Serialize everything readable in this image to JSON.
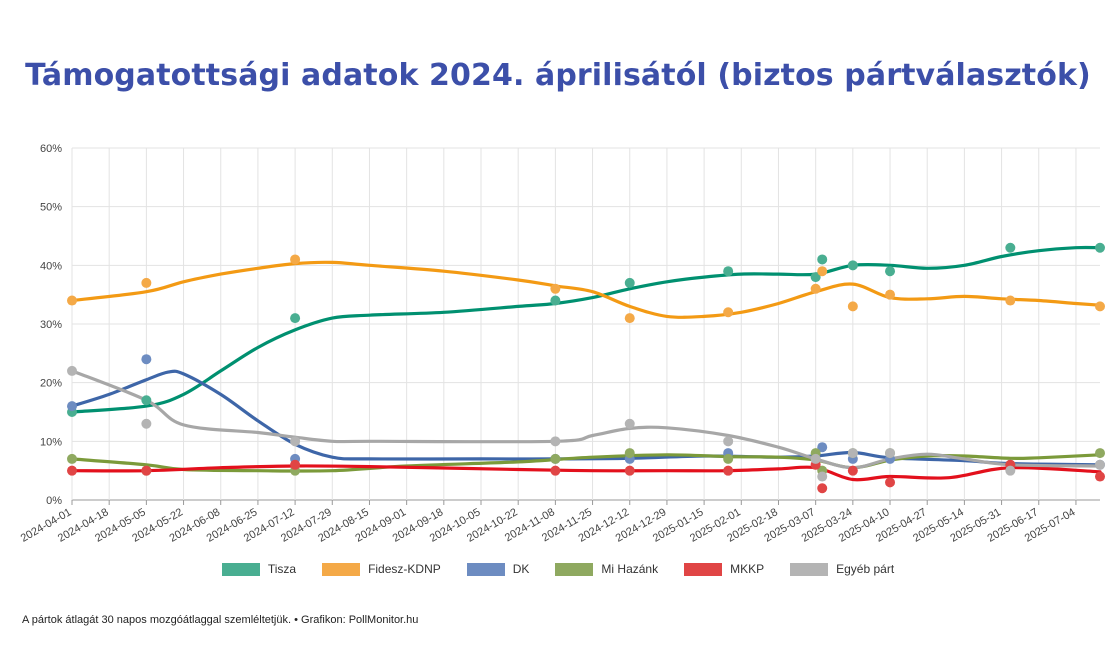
{
  "title": "Támogatottsági adatok 2024. áprilisától (biztos pártválasztók)",
  "footnote": "A pártok átlagát 30 napos mozgóátlaggal szemléltetjük. • Grafikon: PollMonitor.hu",
  "chart_data": {
    "type": "line",
    "title": "Támogatottsági adatok 2024. áprilisától (biztos pártválasztók)",
    "xlabel": "",
    "ylabel": "",
    "ylim": [
      0,
      60
    ],
    "yticks": [
      "0%",
      "10%",
      "20%",
      "30%",
      "40%",
      "50%",
      "60%"
    ],
    "ytick_values": [
      0,
      10,
      20,
      30,
      40,
      50,
      60
    ],
    "xlim": [
      "2024-04-01",
      "2025-07-15"
    ],
    "xticks": [
      "2024-04-01",
      "2024-04-18",
      "2024-05-05",
      "2024-05-22",
      "2024-06-08",
      "2024-06-25",
      "2024-07-12",
      "2024-07-29",
      "2024-08-15",
      "2024-09-01",
      "2024-09-18",
      "2024-10-05",
      "2024-10-22",
      "2024-11-08",
      "2024-11-25",
      "2024-12-12",
      "2024-12-29",
      "2025-01-15",
      "2025-02-01",
      "2025-02-18",
      "2025-03-07",
      "2025-03-24",
      "2025-04-10",
      "2025-04-27",
      "2025-05-14",
      "2025-05-31",
      "2025-06-17",
      "2025-07-04"
    ],
    "grid": true,
    "legend_position": "bottom",
    "series": [
      {
        "name": "Tisza",
        "color": "#009070",
        "point_color": "#49ae91",
        "points": [
          [
            "2024-04-01",
            15
          ],
          [
            "2024-05-05",
            17
          ],
          [
            "2024-07-12",
            31
          ],
          [
            "2024-11-08",
            34
          ],
          [
            "2024-12-12",
            37
          ],
          [
            "2025-01-26",
            39
          ],
          [
            "2025-03-07",
            38
          ],
          [
            "2025-03-10",
            41
          ],
          [
            "2025-03-24",
            40
          ],
          [
            "2025-04-10",
            39
          ],
          [
            "2025-06-04",
            43
          ],
          [
            "2025-07-15",
            43
          ]
        ],
        "trend": [
          [
            "2024-04-01",
            15
          ],
          [
            "2024-05-05",
            16
          ],
          [
            "2024-05-22",
            18
          ],
          [
            "2024-06-08",
            22
          ],
          [
            "2024-06-25",
            26
          ],
          [
            "2024-07-12",
            29
          ],
          [
            "2024-07-29",
            31
          ],
          [
            "2024-08-15",
            31.5
          ],
          [
            "2024-09-18",
            32
          ],
          [
            "2024-10-22",
            33
          ],
          [
            "2024-11-08",
            33.5
          ],
          [
            "2024-11-25",
            34.5
          ],
          [
            "2024-12-12",
            36
          ],
          [
            "2024-12-29",
            37.2
          ],
          [
            "2025-01-15",
            38
          ],
          [
            "2025-02-01",
            38.5
          ],
          [
            "2025-02-18",
            38.5
          ],
          [
            "2025-03-07",
            38.5
          ],
          [
            "2025-03-24",
            40
          ],
          [
            "2025-04-10",
            40
          ],
          [
            "2025-04-27",
            39.5
          ],
          [
            "2025-05-14",
            40
          ],
          [
            "2025-05-31",
            41.5
          ],
          [
            "2025-06-17",
            42.5
          ],
          [
            "2025-07-04",
            43
          ],
          [
            "2025-07-15",
            43
          ]
        ]
      },
      {
        "name": "Fidesz-KDNP",
        "color": "#f39a14",
        "point_color": "#f4a947",
        "points": [
          [
            "2024-04-01",
            34
          ],
          [
            "2024-05-05",
            37
          ],
          [
            "2024-07-12",
            41
          ],
          [
            "2024-11-08",
            36
          ],
          [
            "2024-12-12",
            31
          ],
          [
            "2025-01-26",
            32
          ],
          [
            "2025-03-07",
            36
          ],
          [
            "2025-03-10",
            39
          ],
          [
            "2025-03-24",
            33
          ],
          [
            "2025-04-10",
            35
          ],
          [
            "2025-06-04",
            34
          ],
          [
            "2025-07-15",
            33
          ]
        ],
        "trend": [
          [
            "2024-04-01",
            34
          ],
          [
            "2024-05-05",
            35.5
          ],
          [
            "2024-05-22",
            37.2
          ],
          [
            "2024-06-08",
            38.5
          ],
          [
            "2024-06-25",
            39.5
          ],
          [
            "2024-07-12",
            40.3
          ],
          [
            "2024-07-29",
            40.5
          ],
          [
            "2024-08-15",
            40
          ],
          [
            "2024-09-18",
            39
          ],
          [
            "2024-10-22",
            37.5
          ],
          [
            "2024-11-08",
            36.5
          ],
          [
            "2024-11-25",
            35.5
          ],
          [
            "2024-12-12",
            33
          ],
          [
            "2024-12-29",
            31.3
          ],
          [
            "2025-01-15",
            31.3
          ],
          [
            "2025-02-01",
            32
          ],
          [
            "2025-02-18",
            33.5
          ],
          [
            "2025-03-07",
            35.5
          ],
          [
            "2025-03-24",
            36.8
          ],
          [
            "2025-04-10",
            34.5
          ],
          [
            "2025-04-27",
            34.3
          ],
          [
            "2025-05-14",
            34.7
          ],
          [
            "2025-05-31",
            34.3
          ],
          [
            "2025-06-17",
            34
          ],
          [
            "2025-07-04",
            33.5
          ],
          [
            "2025-07-15",
            33.2
          ]
        ]
      },
      {
        "name": "DK",
        "color": "#3e66a8",
        "point_color": "#6d8cc1",
        "points": [
          [
            "2024-04-01",
            16
          ],
          [
            "2024-05-05",
            24
          ],
          [
            "2024-07-12",
            7
          ],
          [
            "2024-11-08",
            7
          ],
          [
            "2024-12-12",
            7
          ],
          [
            "2025-01-26",
            8
          ],
          [
            "2025-03-07",
            7
          ],
          [
            "2025-03-10",
            9
          ],
          [
            "2025-03-24",
            7
          ],
          [
            "2025-04-10",
            7
          ],
          [
            "2025-06-04",
            6
          ],
          [
            "2025-07-15",
            6
          ]
        ],
        "trend": [
          [
            "2024-04-01",
            16
          ],
          [
            "2024-04-18",
            18
          ],
          [
            "2024-05-05",
            20.5
          ],
          [
            "2024-05-15",
            21.8
          ],
          [
            "2024-05-22",
            21.5
          ],
          [
            "2024-06-08",
            18
          ],
          [
            "2024-06-25",
            13.5
          ],
          [
            "2024-07-12",
            9.5
          ],
          [
            "2024-07-29",
            7.3
          ],
          [
            "2024-08-15",
            7
          ],
          [
            "2024-10-05",
            7
          ],
          [
            "2024-11-08",
            7
          ],
          [
            "2024-12-12",
            7.1
          ],
          [
            "2025-01-15",
            7.5
          ],
          [
            "2025-02-18",
            7.3
          ],
          [
            "2025-03-07",
            7.5
          ],
          [
            "2025-03-24",
            8.1
          ],
          [
            "2025-04-10",
            7.2
          ],
          [
            "2025-05-14",
            6.7
          ],
          [
            "2025-06-04",
            6.2
          ],
          [
            "2025-07-15",
            6
          ]
        ]
      },
      {
        "name": "Mi Hazánk",
        "color": "#7b9a3a",
        "point_color": "#8fa960",
        "points": [
          [
            "2024-04-01",
            7
          ],
          [
            "2024-05-05",
            5
          ],
          [
            "2024-07-12",
            5
          ],
          [
            "2024-11-08",
            7
          ],
          [
            "2024-12-12",
            8
          ],
          [
            "2025-01-26",
            7
          ],
          [
            "2025-03-07",
            8
          ],
          [
            "2025-03-10",
            5
          ],
          [
            "2025-03-24",
            8
          ],
          [
            "2025-04-10",
            8
          ],
          [
            "2025-06-04",
            6
          ],
          [
            "2025-07-15",
            8
          ]
        ],
        "trend": [
          [
            "2024-04-01",
            7
          ],
          [
            "2024-05-05",
            6
          ],
          [
            "2024-05-22",
            5.2
          ],
          [
            "2024-06-25",
            5
          ],
          [
            "2024-07-29",
            5
          ],
          [
            "2024-09-01",
            5.8
          ],
          [
            "2024-10-22",
            6.5
          ],
          [
            "2024-11-25",
            7.3
          ],
          [
            "2024-12-29",
            7.7
          ],
          [
            "2025-01-26",
            7.4
          ],
          [
            "2025-02-18",
            7.3
          ],
          [
            "2025-03-07",
            6.8
          ],
          [
            "2025-03-24",
            5.5
          ],
          [
            "2025-04-10",
            6.8
          ],
          [
            "2025-04-27",
            7.5
          ],
          [
            "2025-05-14",
            7.5
          ],
          [
            "2025-06-04",
            7.1
          ],
          [
            "2025-06-17",
            7.2
          ],
          [
            "2025-07-15",
            7.7
          ]
        ]
      },
      {
        "name": "MKKP",
        "color": "#e3101c",
        "point_color": "#e04545",
        "points": [
          [
            "2024-04-01",
            5
          ],
          [
            "2024-05-05",
            5
          ],
          [
            "2024-07-12",
            6
          ],
          [
            "2024-11-08",
            5
          ],
          [
            "2024-12-12",
            5
          ],
          [
            "2025-01-26",
            5
          ],
          [
            "2025-03-07",
            6
          ],
          [
            "2025-03-10",
            2
          ],
          [
            "2025-03-24",
            5
          ],
          [
            "2025-04-10",
            3
          ],
          [
            "2025-06-04",
            6
          ],
          [
            "2025-07-15",
            4
          ]
        ],
        "trend": [
          [
            "2024-04-01",
            5
          ],
          [
            "2024-05-05",
            5
          ],
          [
            "2024-06-08",
            5.5
          ],
          [
            "2024-07-12",
            5.8
          ],
          [
            "2024-08-15",
            5.7
          ],
          [
            "2024-10-22",
            5.2
          ],
          [
            "2024-11-25",
            5
          ],
          [
            "2024-12-29",
            5
          ],
          [
            "2025-01-26",
            5
          ],
          [
            "2025-02-18",
            5.3
          ],
          [
            "2025-03-07",
            5.5
          ],
          [
            "2025-03-24",
            3.5
          ],
          [
            "2025-04-10",
            4
          ],
          [
            "2025-05-07",
            3.8
          ],
          [
            "2025-06-04",
            5.5
          ],
          [
            "2025-07-15",
            4.8
          ]
        ]
      },
      {
        "name": "Egyéb párt",
        "color": "#a7a7a7",
        "point_color": "#b4b4b4",
        "points": [
          [
            "2024-04-01",
            22
          ],
          [
            "2024-05-05",
            13
          ],
          [
            "2024-07-12",
            10
          ],
          [
            "2024-11-08",
            10
          ],
          [
            "2024-12-12",
            13
          ],
          [
            "2025-01-26",
            10
          ],
          [
            "2025-03-07",
            7
          ],
          [
            "2025-03-10",
            4
          ],
          [
            "2025-03-24",
            8
          ],
          [
            "2025-04-10",
            8
          ],
          [
            "2025-06-04",
            5
          ],
          [
            "2025-07-15",
            6
          ]
        ],
        "trend": [
          [
            "2024-04-01",
            22
          ],
          [
            "2024-05-05",
            17
          ],
          [
            "2024-05-22",
            12.8
          ],
          [
            "2024-06-25",
            11.5
          ],
          [
            "2024-07-12",
            10.7
          ],
          [
            "2024-07-29",
            10
          ],
          [
            "2024-08-15",
            10
          ],
          [
            "2024-11-08",
            10
          ],
          [
            "2024-11-25",
            11
          ],
          [
            "2024-12-12",
            12.2
          ],
          [
            "2024-12-29",
            12.3
          ],
          [
            "2025-01-26",
            11
          ],
          [
            "2025-02-18",
            9
          ],
          [
            "2025-03-07",
            7
          ],
          [
            "2025-03-24",
            5.5
          ],
          [
            "2025-04-10",
            7
          ],
          [
            "2025-04-27",
            7.8
          ],
          [
            "2025-05-14",
            7
          ],
          [
            "2025-06-04",
            6
          ],
          [
            "2025-07-15",
            5.8
          ]
        ]
      }
    ]
  }
}
